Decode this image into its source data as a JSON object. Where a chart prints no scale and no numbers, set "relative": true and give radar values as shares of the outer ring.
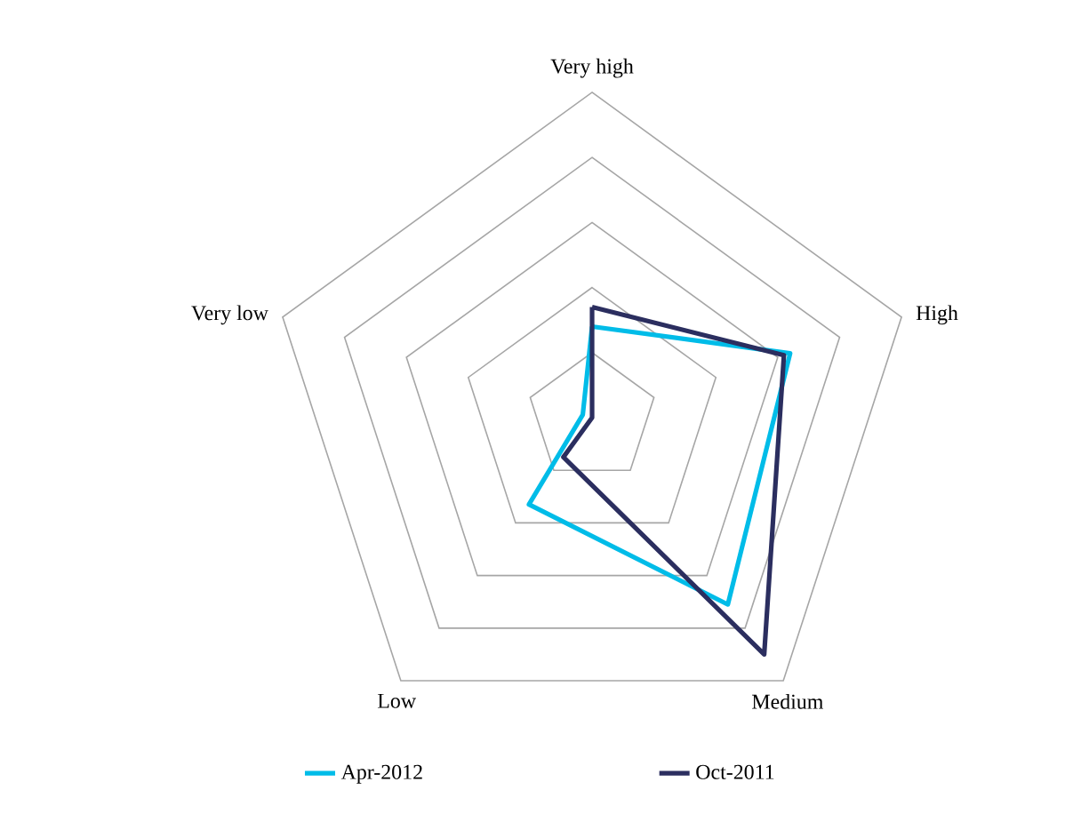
{
  "chart_data": {
    "type": "radar",
    "relative": true,
    "grid": true,
    "legend": "bottom",
    "marker": "none",
    "categories": [
      "Very high",
      "High",
      "Medium",
      "Low",
      "Very low"
    ],
    "series": [
      {
        "name": "Apr-2012",
        "color": "#00bce8",
        "values": [
          0.28,
          0.64,
          0.71,
          0.33,
          0.03
        ]
      },
      {
        "name": "Oct-2011",
        "color": "#2b2e5f",
        "values": [
          0.34,
          0.62,
          0.9,
          0.15,
          0.0
        ]
      }
    ]
  }
}
